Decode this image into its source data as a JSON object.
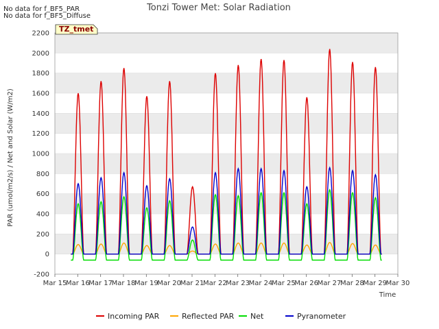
{
  "notes": [
    "No data for f_BF5_PAR",
    "No data for f_BF5_Diffuse"
  ],
  "badge": "TZ_tmet",
  "chart_data": {
    "type": "line",
    "title": "Tonzi Tower Met: Solar Radiation",
    "xlabel": "Time",
    "ylabel": "PAR (umol/m2/s) / Net and Solar (W/m2)",
    "ylim": [
      -200,
      2200
    ],
    "yticks": [
      -200,
      0,
      200,
      400,
      600,
      800,
      1000,
      1200,
      1400,
      1600,
      1800,
      2000,
      2200
    ],
    "xlim": [
      15,
      30
    ],
    "xticks": [
      "Mar 15",
      "Mar 16",
      "Mar 17",
      "Mar 18",
      "Mar 19",
      "Mar 20",
      "Mar 21",
      "Mar 22",
      "Mar 23",
      "Mar 24",
      "Mar 25",
      "Mar 26",
      "Mar 27",
      "Mar 28",
      "Mar 29",
      "Mar 30"
    ],
    "grid": true,
    "legend_position": "bottom",
    "x_days": [
      16,
      17,
      18,
      19,
      20,
      21,
      22,
      23,
      24,
      25,
      26,
      27,
      28,
      29
    ],
    "series": [
      {
        "name": "Incoming PAR",
        "color": "#dd0000",
        "night": 0,
        "daily_peak": [
          1600,
          1720,
          1850,
          1570,
          1720,
          670,
          1800,
          1880,
          1940,
          1930,
          1560,
          2040,
          1910,
          1860
        ]
      },
      {
        "name": "Reflected PAR",
        "color": "#ffa500",
        "night": 0,
        "daily_peak": [
          95,
          100,
          110,
          85,
          85,
          30,
          100,
          110,
          110,
          110,
          90,
          115,
          105,
          90
        ]
      },
      {
        "name": "Net",
        "color": "#00dd00",
        "night": -60,
        "daily_peak": [
          500,
          520,
          570,
          460,
          530,
          140,
          590,
          580,
          610,
          610,
          500,
          640,
          610,
          560
        ]
      },
      {
        "name": "Pyranometer",
        "color": "#0000cc",
        "night": 0,
        "daily_peak": [
          700,
          760,
          810,
          680,
          750,
          270,
          810,
          850,
          850,
          830,
          670,
          860,
          830,
          790
        ]
      }
    ]
  }
}
